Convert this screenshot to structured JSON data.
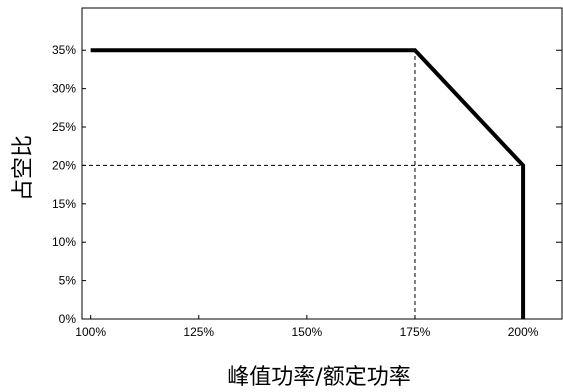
{
  "chart_data": {
    "type": "line",
    "xlabel": "峰值功率/额定功率",
    "ylabel": "占空比",
    "x_ticks": [
      "100%",
      "125%",
      "150%",
      "175%",
      "200%"
    ],
    "x_tick_values": [
      100,
      125,
      150,
      175,
      200
    ],
    "y_ticks": [
      "0%",
      "5%",
      "10%",
      "15%",
      "20%",
      "25%",
      "30%",
      "35%"
    ],
    "y_tick_values": [
      0,
      5,
      10,
      15,
      20,
      25,
      30,
      35
    ],
    "xlim": [
      98,
      209
    ],
    "ylim": [
      0,
      40.5
    ],
    "grid": false,
    "series": [
      {
        "points": [
          [
            100,
            35
          ],
          [
            175,
            35
          ],
          [
            200,
            20
          ],
          [
            200,
            0
          ]
        ]
      }
    ],
    "reference_lines": [
      {
        "points": [
          [
            175,
            0
          ],
          [
            175,
            35
          ]
        ],
        "style": "dashed"
      },
      {
        "points": [
          [
            98,
            20
          ],
          [
            200,
            20
          ]
        ],
        "style": "dashed"
      }
    ],
    "colors": {
      "line": "#000000",
      "axes": "#000000"
    }
  }
}
